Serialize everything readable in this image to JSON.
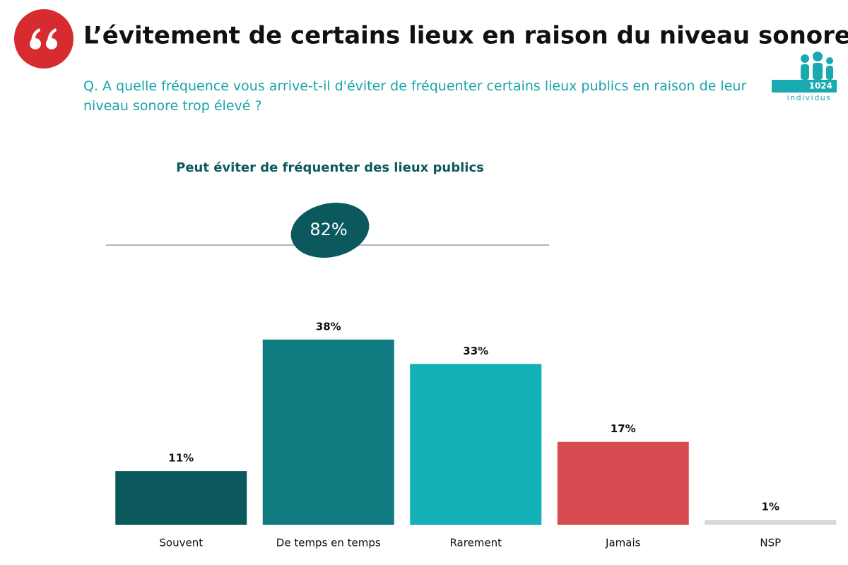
{
  "chart_data": {
    "type": "bar",
    "title": "L’évitement de certains lieux en raison du niveau sonore",
    "subtitle": "Q. A quelle fréquence vous arrive-t-il d'éviter de fréquenter certains lieux publics en raison de leur niveau sonore trop élevé ?",
    "sample": {
      "count": 1024,
      "label": "individus"
    },
    "summary": {
      "label": "Peut éviter de fréquenter des lieux publics",
      "value": 82,
      "value_label": "82%"
    },
    "categories": [
      "Souvent",
      "De temps en temps",
      "Rarement",
      "Jamais",
      "NSP"
    ],
    "values": [
      11,
      38,
      33,
      17,
      1
    ],
    "value_labels": [
      "11%",
      "38%",
      "33%",
      "17%",
      "1%"
    ],
    "colors": [
      "#0c595d",
      "#0f7b81",
      "#14b0b8",
      "#d64c50",
      "#d9d9d9"
    ]
  }
}
